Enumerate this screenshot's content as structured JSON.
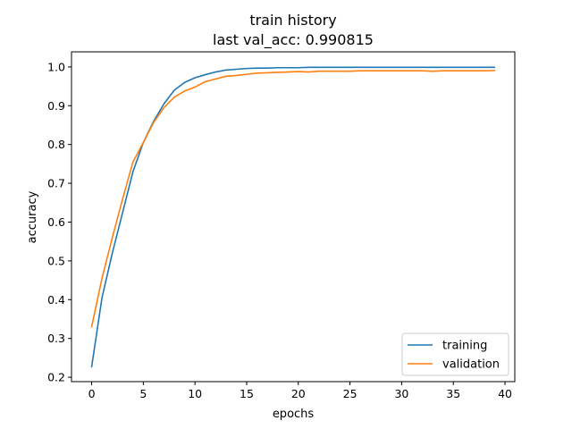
{
  "chart_data": {
    "type": "line",
    "title": "train history",
    "subtitle": "last val_acc: 0.990815",
    "xlabel": "epochs",
    "ylabel": "accuracy",
    "xlim": [
      -1.95,
      40.95
    ],
    "ylim": [
      0.1887,
      1.0389
    ],
    "xticks": [
      0,
      5,
      10,
      15,
      20,
      25,
      30,
      35,
      40
    ],
    "yticks": [
      0.2,
      0.3,
      0.4,
      0.5,
      0.6,
      0.7,
      0.8,
      0.9,
      1.0
    ],
    "xtick_labels": [
      "0",
      "5",
      "10",
      "15",
      "20",
      "25",
      "30",
      "35",
      "40"
    ],
    "ytick_labels": [
      "0.2",
      "0.3",
      "0.4",
      "0.5",
      "0.6",
      "0.7",
      "0.8",
      "0.9",
      "1.0"
    ],
    "grid": false,
    "legend_position": "lower-right",
    "x": [
      0,
      1,
      2,
      3,
      4,
      5,
      6,
      7,
      8,
      9,
      10,
      11,
      12,
      13,
      14,
      15,
      16,
      17,
      18,
      19,
      20,
      21,
      22,
      23,
      24,
      25,
      26,
      27,
      28,
      29,
      30,
      31,
      32,
      33,
      34,
      35,
      36,
      37,
      38,
      39
    ],
    "series": [
      {
        "name": "training",
        "color": "#1f77b4",
        "values": [
          0.227,
          0.405,
          0.52,
          0.625,
          0.73,
          0.805,
          0.86,
          0.905,
          0.94,
          0.96,
          0.972,
          0.98,
          0.987,
          0.992,
          0.994,
          0.996,
          0.997,
          0.997,
          0.998,
          0.998,
          0.998,
          0.999,
          0.999,
          0.999,
          0.999,
          0.999,
          0.999,
          0.999,
          0.999,
          0.999,
          0.999,
          0.999,
          0.999,
          0.999,
          0.999,
          0.999,
          0.999,
          0.999,
          0.999,
          0.999
        ]
      },
      {
        "name": "validation",
        "color": "#ff7f0e",
        "values": [
          0.33,
          0.455,
          0.56,
          0.66,
          0.755,
          0.805,
          0.857,
          0.895,
          0.922,
          0.938,
          0.948,
          0.962,
          0.969,
          0.976,
          0.978,
          0.981,
          0.984,
          0.985,
          0.986,
          0.987,
          0.988,
          0.987,
          0.989,
          0.989,
          0.989,
          0.989,
          0.99,
          0.99,
          0.99,
          0.99,
          0.99,
          0.99,
          0.99,
          0.989,
          0.99,
          0.99,
          0.99,
          0.99,
          0.99,
          0.9908
        ]
      }
    ]
  }
}
